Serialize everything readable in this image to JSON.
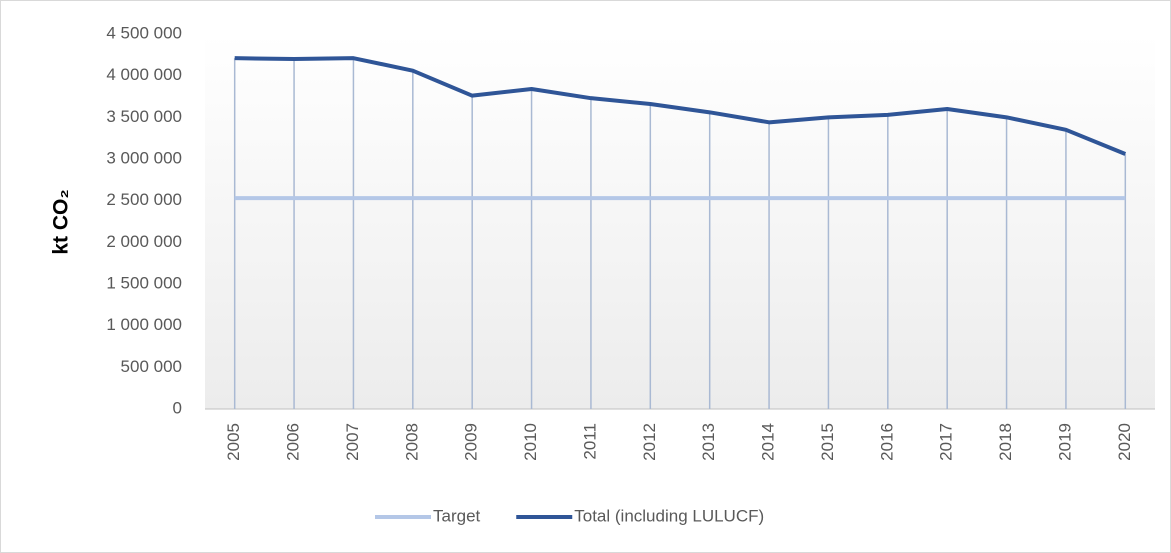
{
  "chart_data": {
    "type": "line",
    "y_label": "kt CO₂",
    "categories": [
      "2005",
      "2006",
      "2007",
      "2008",
      "2009",
      "2010",
      "2011",
      "2012",
      "2013",
      "2014",
      "2015",
      "2016",
      "2017",
      "2018",
      "2019",
      "2020"
    ],
    "series": [
      {
        "name": "Target",
        "color": "#b4c7e7",
        "values": [
          2530000,
          2530000,
          2530000,
          2530000,
          2530000,
          2530000,
          2530000,
          2530000,
          2530000,
          2530000,
          2530000,
          2530000,
          2530000,
          2530000,
          2530000,
          2530000
        ]
      },
      {
        "name": "Total (including LULUCF)",
        "color": "#2f5597",
        "values": [
          4210000,
          4200000,
          4210000,
          4060000,
          3760000,
          3840000,
          3730000,
          3660000,
          3560000,
          3440000,
          3500000,
          3530000,
          3600000,
          3500000,
          3350000,
          3060000
        ]
      }
    ],
    "ylim": [
      0,
      4500000
    ],
    "yticks": [
      0,
      {
        "value": 500000,
        "label": "500 000"
      },
      {
        "value": 1000000,
        "label": "1 000 000"
      },
      {
        "value": 1500000,
        "label": "1 500 000"
      },
      {
        "value": 2000000,
        "label": "2 000 000"
      },
      {
        "value": 2500000,
        "label": "2 500 000"
      },
      {
        "value": 3000000,
        "label": "3 000 000"
      },
      {
        "value": 3500000,
        "label": "3 500 000"
      },
      {
        "value": 4000000,
        "label": "4 000 000"
      },
      {
        "value": 4500000,
        "label": "4 500 000"
      }
    ],
    "drop_lines": true,
    "legend": "bottom"
  }
}
